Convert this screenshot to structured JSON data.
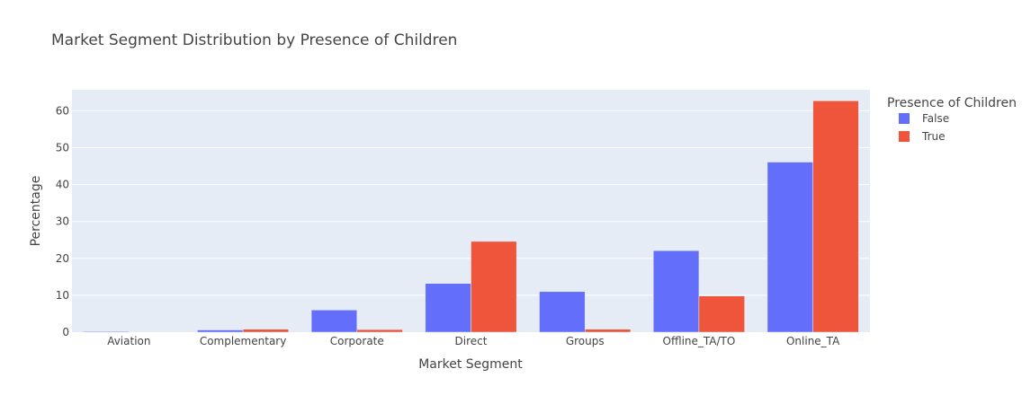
{
  "chart_data": {
    "type": "bar",
    "title": "Market Segment Distribution by Presence of Children",
    "xlabel": "Market Segment",
    "ylabel": "Percentage",
    "categories": [
      "Aviation",
      "Complementary",
      "Corporate",
      "Direct",
      "Groups",
      "Offline_TA/TO",
      "Online_TA"
    ],
    "series": [
      {
        "name": "False",
        "color": "#636efa",
        "values": [
          0.2,
          0.6,
          6.0,
          13.2,
          11.0,
          22.1,
          46.1
        ]
      },
      {
        "name": "True",
        "color": "#ef553b",
        "values": [
          0.0,
          0.8,
          0.7,
          24.6,
          0.8,
          9.8,
          62.7
        ]
      }
    ],
    "yticks": [
      0,
      10,
      20,
      30,
      40,
      50,
      60
    ],
    "ylim": [
      0,
      65.7
    ],
    "grid": true,
    "legend": {
      "title": "Presence of Children",
      "placement": "right"
    },
    "plot_bgcolor": "#e5ecf6"
  }
}
